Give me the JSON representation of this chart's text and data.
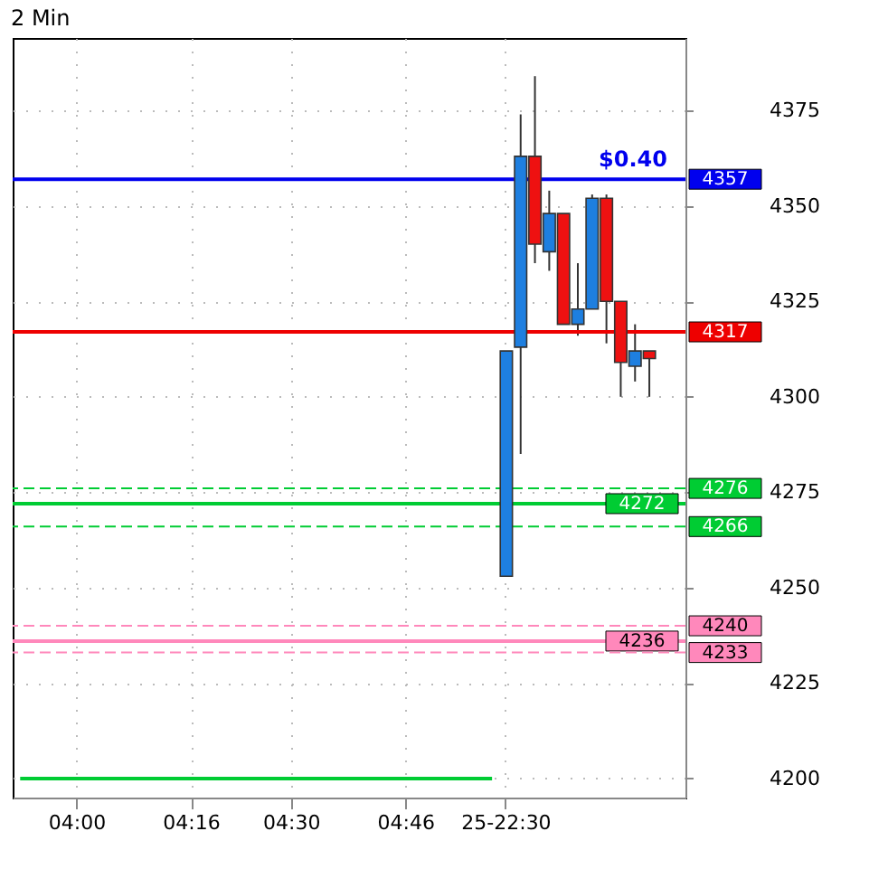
{
  "chart_data": {
    "type": "candlestick",
    "title": "2 Min",
    "categories": [
      null,
      null,
      null,
      null,
      "04:00",
      null,
      null,
      null,
      null,
      null,
      null,
      null,
      "04:16",
      null,
      null,
      null,
      null,
      null,
      null,
      "04:30",
      null,
      null,
      null,
      null,
      null,
      null,
      null,
      "04:46",
      null,
      null,
      null,
      null,
      null,
      null,
      "25-22:30",
      null,
      null,
      null,
      null,
      null,
      null,
      null,
      null,
      null,
      null,
      null,
      null
    ],
    "ohlc": [
      null,
      null,
      null,
      null,
      null,
      null,
      null,
      null,
      null,
      null,
      null,
      null,
      null,
      null,
      null,
      null,
      null,
      null,
      null,
      null,
      null,
      null,
      null,
      null,
      null,
      null,
      null,
      null,
      null,
      null,
      null,
      null,
      null,
      null,
      [
        4253,
        4312,
        4253,
        4312
      ],
      [
        4313,
        4374,
        4285,
        4363
      ],
      [
        4363,
        4384,
        4335,
        4340
      ],
      [
        4338,
        4354,
        4333,
        4348
      ],
      [
        4348,
        4348,
        4319,
        4319
      ],
      [
        4319,
        4335,
        4316,
        4323
      ],
      [
        4323,
        4353,
        4323,
        4352
      ],
      [
        4352,
        4353,
        4314,
        4325
      ],
      [
        4325,
        4325,
        4300,
        4309
      ],
      [
        4308,
        4319,
        4304,
        4312
      ],
      [
        4312,
        4312,
        4300,
        4310
      ],
      null,
      null
    ],
    "colors": [
      null,
      null,
      null,
      null,
      null,
      null,
      null,
      null,
      null,
      null,
      null,
      null,
      null,
      null,
      null,
      null,
      null,
      null,
      null,
      null,
      null,
      null,
      null,
      null,
      null,
      null,
      null,
      null,
      null,
      null,
      null,
      null,
      null,
      null,
      "#1e7fe0",
      "#1e7fe0",
      "#ee1111",
      "#1e7fe0",
      "#ee1111",
      "#1e7fe0",
      "#1e7fe0",
      "#ee1111",
      "#ee1111",
      "#1e7fe0",
      "#ee1111",
      null,
      null
    ],
    "series": [
      {
        "type": "line",
        "color": "#00cc33",
        "values": [
          4200,
          4200,
          4200,
          4200,
          4200,
          4200,
          4200,
          4200,
          4200,
          4200,
          4200,
          4200,
          4200,
          4200,
          4200,
          4200,
          4200,
          4200,
          4200,
          4200,
          4200,
          4200,
          4200,
          4200,
          4200,
          4200,
          4200,
          4200,
          4200,
          4200,
          4200,
          4200,
          4200,
          4200,
          null,
          null,
          null,
          null,
          null,
          null,
          null,
          null,
          null,
          null,
          null,
          null,
          null
        ]
      }
    ],
    "ylim": [
      4195,
      4394
    ],
    "yticks": [
      4200,
      4225,
      4250,
      4275,
      4300,
      4325,
      4350,
      4375
    ],
    "ref_lines": [
      {
        "axis": "y",
        "value": 4357,
        "label": "4357",
        "color": "#0000ee",
        "line_style": "solid"
      },
      {
        "axis": "y",
        "value": 4317,
        "label": "4317",
        "color": "#ee0000",
        "line_style": "solid"
      },
      {
        "axis": "y",
        "value": 4276,
        "label": "4276",
        "color": "#00cc33",
        "line_style": "dashed"
      },
      {
        "axis": "y",
        "value": 4272,
        "label": "4272",
        "color": "#00cc33",
        "line_style": "solid"
      },
      {
        "axis": "y",
        "value": 4266,
        "label": "4266",
        "color": "#00cc33",
        "line_style": "dashed"
      },
      {
        "axis": "y",
        "value": 4240,
        "label": "4240",
        "color": "#ff88bb",
        "line_style": "dashed"
      },
      {
        "axis": "y",
        "value": 4236,
        "label": "4236",
        "color": "#ff88bb",
        "line_style": "solid"
      },
      {
        "axis": "y",
        "value": 4233,
        "label": "4233",
        "color": "#ff88bb",
        "line_style": "dashed"
      }
    ],
    "annotations": [
      "$0.40"
    ],
    "grid": true
  }
}
